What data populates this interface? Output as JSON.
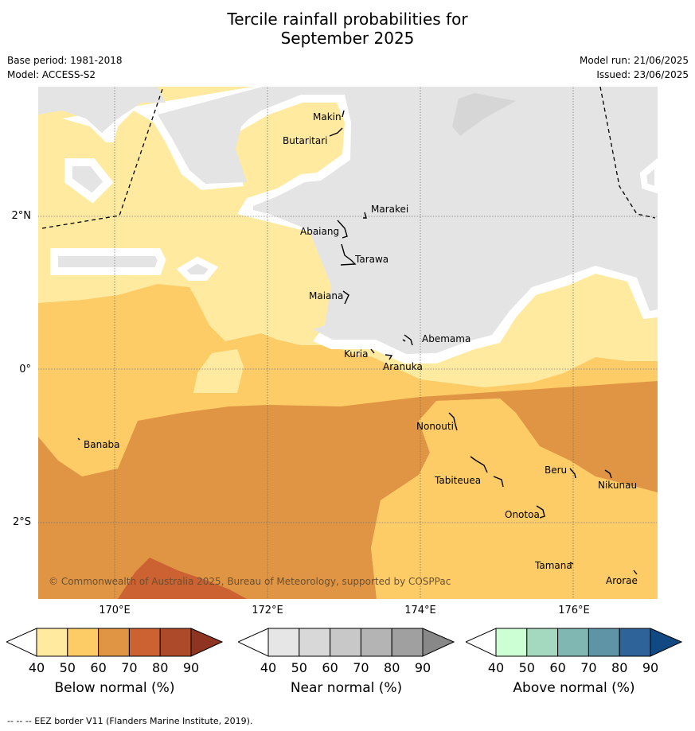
{
  "title_line1": "Tercile rainfall probabilities for",
  "title_line2": "September 2025",
  "base_period": "Base period: 1981-2018",
  "model": "Model: ACCESS-S2",
  "model_run": "Model run: 21/06/2025",
  "issued": "Issued: 23/06/2025",
  "lat_labels": [
    "2°N",
    "0°",
    "2°S"
  ],
  "lon_labels": [
    "170°E",
    "172°E",
    "174°E",
    "176°E"
  ],
  "islands": [
    {
      "name": "Makin"
    },
    {
      "name": "Butaritari"
    },
    {
      "name": "Marakei"
    },
    {
      "name": "Abaiang"
    },
    {
      "name": "Tarawa"
    },
    {
      "name": "Maiana"
    },
    {
      "name": "Abemama"
    },
    {
      "name": "Kuria"
    },
    {
      "name": "Aranuka"
    },
    {
      "name": "Banaba"
    },
    {
      "name": "Nonouti"
    },
    {
      "name": "Tabiteuea"
    },
    {
      "name": "Beru"
    },
    {
      "name": "Nikunau"
    },
    {
      "name": "Onotoa"
    },
    {
      "name": "Tamana"
    },
    {
      "name": "Arorae"
    }
  ],
  "copyright": "© Commonwealth of Australia 2025, Bureau of Meteorology, supported by COSPPac",
  "colorbars": [
    {
      "title": "Below normal (%)",
      "ticks": [
        "40",
        "50",
        "60",
        "70",
        "80",
        "90"
      ],
      "colors": [
        "#ffeaa0",
        "#fecc66",
        "#e09545",
        "#cc6131",
        "#ad4a29",
        "#8e3420"
      ]
    },
    {
      "title": "Near normal (%)",
      "ticks": [
        "40",
        "50",
        "60",
        "70",
        "80",
        "90"
      ],
      "colors": [
        "#e6e6e6",
        "#d8d8d8",
        "#c8c8c8",
        "#b4b4b4",
        "#a0a0a0",
        "#888888"
      ]
    },
    {
      "title": "Above normal (%)",
      "ticks": [
        "40",
        "50",
        "60",
        "70",
        "80",
        "90"
      ],
      "colors": [
        "#ccffd4",
        "#a5d9bf",
        "#80b7b3",
        "#5f93a6",
        "#2e6399",
        "#114a82"
      ]
    }
  ],
  "map_colors": {
    "near_normal": "#e4e4e4",
    "below_40_50": "#ffeaa0",
    "below_50_60": "#fecc66",
    "below_60_70": "#e09545",
    "below_70_80": "#cc6131"
  },
  "footnote": "--  --  -- EEZ border V11 (Flanders Marine Institute, 2019)."
}
